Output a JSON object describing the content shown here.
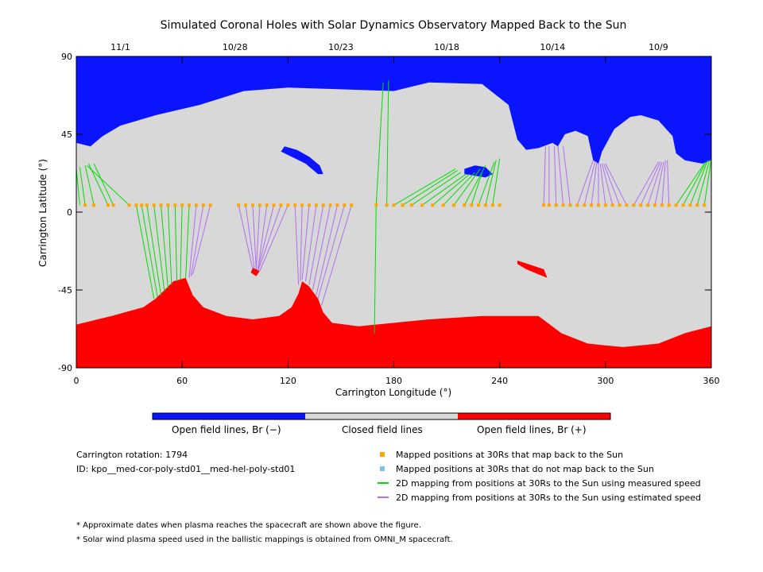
{
  "colors": {
    "open_negative": "#0a14ff",
    "closed": "#d8d8d8",
    "open_positive": "#ff0000",
    "mapped_point": "#ffa500",
    "unmapped_point": "#7ec0ee",
    "measured_line": "#00dd00",
    "estimated_line": "#b070f0"
  },
  "chart_data": {
    "type": "map",
    "title": "Simulated Coronal Holes with Solar Dynamics Observatory Mapped Back to the Sun",
    "xlabel": "Carrington Longitude (°)",
    "ylabel": "Carrington Latitude (°)",
    "xlim": [
      0,
      360
    ],
    "ylim": [
      -90,
      90
    ],
    "x_ticks": [
      0,
      60,
      120,
      180,
      240,
      300,
      360
    ],
    "y_ticks": [
      -90,
      -45,
      0,
      45,
      90
    ],
    "top_axis": [
      {
        "lon": 25,
        "label": "11/1"
      },
      {
        "lon": 90,
        "label": "10/28"
      },
      {
        "lon": 150,
        "label": "10/23"
      },
      {
        "lon": 210,
        "label": "10/18"
      },
      {
        "lon": 270,
        "label": "10/14"
      },
      {
        "lon": 330,
        "label": "10/9"
      }
    ],
    "regions": {
      "north_open_negative_boundary": [
        [
          0,
          40
        ],
        [
          8,
          38
        ],
        [
          15,
          44
        ],
        [
          25,
          50
        ],
        [
          45,
          56
        ],
        [
          70,
          62
        ],
        [
          95,
          70
        ],
        [
          120,
          72
        ],
        [
          150,
          71
        ],
        [
          180,
          70
        ],
        [
          200,
          75
        ],
        [
          230,
          74
        ],
        [
          245,
          62
        ],
        [
          250,
          42
        ],
        [
          255,
          36
        ],
        [
          262,
          37
        ],
        [
          270,
          40
        ],
        [
          273,
          38
        ],
        [
          277,
          45
        ],
        [
          283,
          47
        ],
        [
          290,
          44
        ],
        [
          293,
          30
        ],
        [
          296,
          28
        ],
        [
          298,
          35
        ],
        [
          305,
          48
        ],
        [
          314,
          55
        ],
        [
          320,
          56
        ],
        [
          330,
          53
        ],
        [
          338,
          44
        ],
        [
          340,
          34
        ],
        [
          345,
          30
        ],
        [
          355,
          28
        ],
        [
          360,
          30
        ]
      ],
      "south_open_positive_boundary": [
        [
          0,
          -65
        ],
        [
          20,
          -60
        ],
        [
          38,
          -55
        ],
        [
          45,
          -50
        ],
        [
          50,
          -45
        ],
        [
          55,
          -40
        ],
        [
          62,
          -38
        ],
        [
          66,
          -48
        ],
        [
          72,
          -55
        ],
        [
          85,
          -60
        ],
        [
          100,
          -62
        ],
        [
          115,
          -60
        ],
        [
          122,
          -55
        ],
        [
          126,
          -47
        ],
        [
          128,
          -40
        ],
        [
          132,
          -43
        ],
        [
          137,
          -50
        ],
        [
          140,
          -58
        ],
        [
          145,
          -64
        ],
        [
          160,
          -66
        ],
        [
          180,
          -64
        ],
        [
          200,
          -62
        ],
        [
          230,
          -60
        ],
        [
          250,
          -60
        ],
        [
          262,
          -60
        ],
        [
          275,
          -70
        ],
        [
          290,
          -76
        ],
        [
          310,
          -78
        ],
        [
          330,
          -76
        ],
        [
          345,
          -70
        ],
        [
          360,
          -66
        ]
      ],
      "small_holes_negative": [
        [
          [
            118,
            38
          ],
          [
            125,
            36
          ],
          [
            132,
            32
          ],
          [
            138,
            27
          ],
          [
            140,
            22
          ],
          [
            137,
            22
          ],
          [
            130,
            28
          ],
          [
            122,
            32
          ],
          [
            116,
            35
          ]
        ],
        [
          [
            220,
            25
          ],
          [
            226,
            27
          ],
          [
            232,
            26
          ],
          [
            236,
            22
          ],
          [
            232,
            20
          ],
          [
            226,
            21
          ],
          [
            220,
            22
          ]
        ]
      ],
      "small_holes_positive": [
        [
          [
            100,
            -32
          ],
          [
            104,
            -34
          ],
          [
            102,
            -37
          ],
          [
            99,
            -35
          ]
        ],
        [
          [
            250,
            -28
          ],
          [
            256,
            -30
          ],
          [
            265,
            -33
          ],
          [
            267,
            -38
          ],
          [
            262,
            -36
          ],
          [
            255,
            -33
          ],
          [
            250,
            -30
          ]
        ]
      ]
    },
    "mapped_points": {
      "latitude": 4,
      "longitudes": [
        5,
        10,
        18,
        21,
        30,
        34,
        37,
        40,
        44,
        48,
        52,
        56,
        60,
        64,
        68,
        72,
        76,
        92,
        96,
        100,
        104,
        108,
        112,
        116,
        120,
        124,
        128,
        132,
        136,
        140,
        144,
        148,
        152,
        156,
        170,
        176,
        180,
        185,
        190,
        196,
        202,
        208,
        214,
        220,
        224,
        228,
        232,
        236,
        240,
        265,
        268,
        272,
        276,
        280,
        284,
        288,
        292,
        296,
        300,
        304,
        308,
        312,
        316,
        320,
        324,
        328,
        332,
        336,
        340,
        344,
        348,
        352,
        356
      ]
    },
    "unmapped_points": {
      "latitude": 4,
      "longitudes": []
    },
    "measured_mappings": [
      [
        2,
        4,
        0,
        25
      ],
      [
        5,
        4,
        2,
        26
      ],
      [
        10,
        4,
        5,
        27
      ],
      [
        18,
        4,
        7,
        28
      ],
      [
        21,
        4,
        10,
        28
      ],
      [
        30,
        4,
        6,
        27
      ],
      [
        34,
        4,
        44,
        -50
      ],
      [
        37,
        4,
        46,
        -49
      ],
      [
        40,
        4,
        48,
        -48
      ],
      [
        44,
        4,
        50,
        -46
      ],
      [
        48,
        4,
        52,
        -44
      ],
      [
        52,
        4,
        54,
        -42
      ],
      [
        56,
        4,
        57,
        -40
      ],
      [
        60,
        4,
        59,
        -39
      ],
      [
        64,
        4,
        62,
        -38
      ],
      [
        170,
        4,
        174,
        75
      ],
      [
        176,
        4,
        177,
        76
      ],
      [
        170,
        4,
        169,
        -70
      ],
      [
        180,
        4,
        215,
        25
      ],
      [
        185,
        4,
        216,
        24
      ],
      [
        190,
        4,
        218,
        23
      ],
      [
        196,
        4,
        221,
        22
      ],
      [
        202,
        4,
        223,
        22
      ],
      [
        208,
        4,
        226,
        23
      ],
      [
        214,
        4,
        229,
        25
      ],
      [
        220,
        4,
        232,
        27
      ],
      [
        224,
        4,
        230,
        23
      ],
      [
        228,
        4,
        237,
        29
      ],
      [
        232,
        4,
        238,
        30
      ],
      [
        236,
        4,
        240,
        31
      ],
      [
        340,
        4,
        356,
        28
      ],
      [
        344,
        4,
        357,
        29
      ],
      [
        348,
        4,
        358,
        30
      ],
      [
        352,
        4,
        359,
        30
      ],
      [
        356,
        4,
        360,
        31
      ]
    ],
    "estimated_mappings": [
      [
        68,
        4,
        64,
        -38
      ],
      [
        72,
        4,
        65,
        -37
      ],
      [
        76,
        4,
        66,
        -36
      ],
      [
        92,
        4,
        100,
        -33
      ],
      [
        96,
        4,
        101,
        -33
      ],
      [
        100,
        4,
        102,
        -33
      ],
      [
        104,
        4,
        102,
        -33
      ],
      [
        108,
        4,
        103,
        -33
      ],
      [
        112,
        4,
        103,
        -33
      ],
      [
        116,
        4,
        103,
        -34
      ],
      [
        120,
        4,
        104,
        -34
      ],
      [
        124,
        4,
        126,
        -42
      ],
      [
        128,
        4,
        127,
        -40
      ],
      [
        132,
        4,
        128,
        -39
      ],
      [
        136,
        4,
        130,
        -40
      ],
      [
        140,
        4,
        132,
        -42
      ],
      [
        144,
        4,
        134,
        -45
      ],
      [
        148,
        4,
        136,
        -48
      ],
      [
        152,
        4,
        137,
        -50
      ],
      [
        156,
        4,
        139,
        -54
      ],
      [
        265,
        4,
        266,
        38
      ],
      [
        268,
        4,
        268,
        38
      ],
      [
        272,
        4,
        271,
        38
      ],
      [
        276,
        4,
        273,
        38
      ],
      [
        280,
        4,
        276,
        38
      ],
      [
        284,
        4,
        293,
        30
      ],
      [
        288,
        4,
        294,
        29
      ],
      [
        292,
        4,
        295,
        29
      ],
      [
        296,
        4,
        296,
        28
      ],
      [
        300,
        4,
        297,
        28
      ],
      [
        304,
        4,
        298,
        28
      ],
      [
        308,
        4,
        299,
        28
      ],
      [
        312,
        4,
        300,
        28
      ],
      [
        316,
        4,
        330,
        29
      ],
      [
        320,
        4,
        331,
        29
      ],
      [
        324,
        4,
        332,
        29
      ],
      [
        328,
        4,
        333,
        29
      ],
      [
        332,
        4,
        334,
        30
      ],
      [
        336,
        4,
        335,
        30
      ]
    ]
  },
  "colorbar": {
    "labels": [
      "Open field lines, Br (−)",
      "Closed field lines",
      "Open field lines, Br (+)"
    ]
  },
  "info": {
    "rotation": "Carrington rotation: 1794",
    "id": "ID: kpo__med-cor-poly-std01__med-hel-poly-std01"
  },
  "legend": [
    {
      "kind": "square",
      "color_key": "mapped_point",
      "label": "Mapped positions at 30Rs that map back to the Sun"
    },
    {
      "kind": "square",
      "color_key": "unmapped_point",
      "label": "Mapped positions at 30Rs that do not map back to the Sun"
    },
    {
      "kind": "line",
      "color_key": "measured_line",
      "label": "2D mapping from positions at 30Rs to the Sun using measured speed"
    },
    {
      "kind": "line",
      "color_key": "estimated_line",
      "label": "2D mapping from positions at 30Rs to the Sun using estimated speed"
    }
  ],
  "footnotes": [
    "* Approximate dates when plasma reaches the spacecraft are shown above the figure.",
    "* Solar wind plasma speed used in the ballistic mappings is obtained from OMNI_M spacecraft."
  ]
}
